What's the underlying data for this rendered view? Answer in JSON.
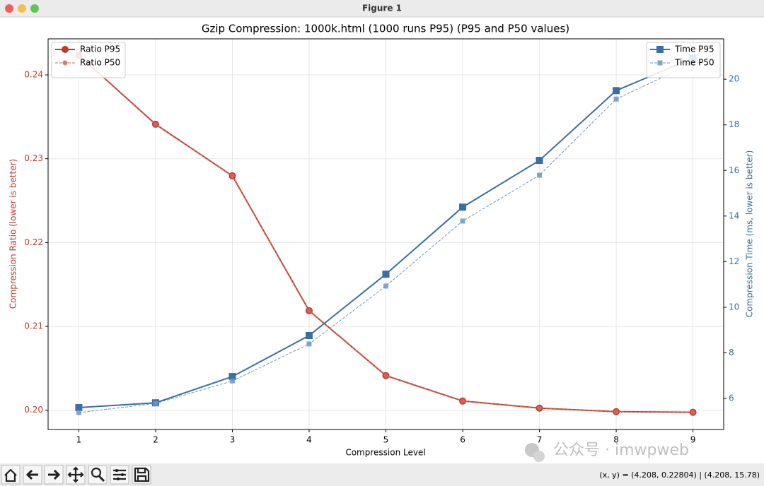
{
  "window": {
    "title": "Figure 1"
  },
  "status_bar": {
    "text": "(x, y) = (4.208, 0.22804) | (4.208, 15.78)"
  },
  "watermark": "公众号 · imwpweb",
  "chart_data": {
    "type": "line",
    "title": "Gzip Compression: 1000k.html (1000 runs P95) (P95 and P50 values)",
    "xlabel": "Compression Level",
    "ylabel": "Compression Ratio (lower is better)",
    "y2label": "Compression Time (ms, lower is better)",
    "x": [
      1,
      2,
      3,
      4,
      5,
      6,
      7,
      8,
      9
    ],
    "xlim": [
      0.6,
      9.4
    ],
    "xticks": [
      1,
      2,
      3,
      4,
      5,
      6,
      7,
      8,
      9
    ],
    "ylim": [
      0.1977,
      0.2443
    ],
    "yticks": [
      {
        "value": 0.2,
        "label": "0.20"
      },
      0.21,
      0.22,
      0.23,
      0.24
    ],
    "y2lim": [
      4.64,
      21.77
    ],
    "y2ticks": [
      6,
      8,
      10,
      12,
      14,
      16,
      18,
      20
    ],
    "grid": true,
    "legend": {
      "y": "upper left",
      "y2": "upper right"
    },
    "series": [
      {
        "name": "Ratio P95",
        "color": "#c0392b",
        "linestyle": "solid",
        "marker": "circle",
        "axis": "y",
        "values": [
          0.24236,
          0.23411,
          0.22796,
          0.21187,
          0.20413,
          0.2011,
          0.20025,
          0.19983,
          0.19975
        ]
      },
      {
        "name": "Ratio P50",
        "color": "#d46a5f",
        "linestyle": "dashed",
        "marker": "circle",
        "axis": "y",
        "values": [
          0.24236,
          0.23411,
          0.22796,
          0.21187,
          0.20413,
          0.2011,
          0.20025,
          0.19983,
          0.19975
        ]
      },
      {
        "name": "Time P95",
        "color": "#3a6ea5",
        "linestyle": "solid",
        "marker": "square",
        "axis": "y2",
        "values": [
          5.6,
          5.81,
          6.96,
          8.76,
          11.45,
          14.39,
          16.44,
          19.5,
          20.93
        ]
      },
      {
        "name": "Time P50",
        "color": "#6b98c6",
        "linestyle": "dashed",
        "marker": "square",
        "axis": "y2",
        "values": [
          5.38,
          5.78,
          6.77,
          8.39,
          10.93,
          13.78,
          15.79,
          19.13,
          20.71
        ]
      }
    ]
  }
}
